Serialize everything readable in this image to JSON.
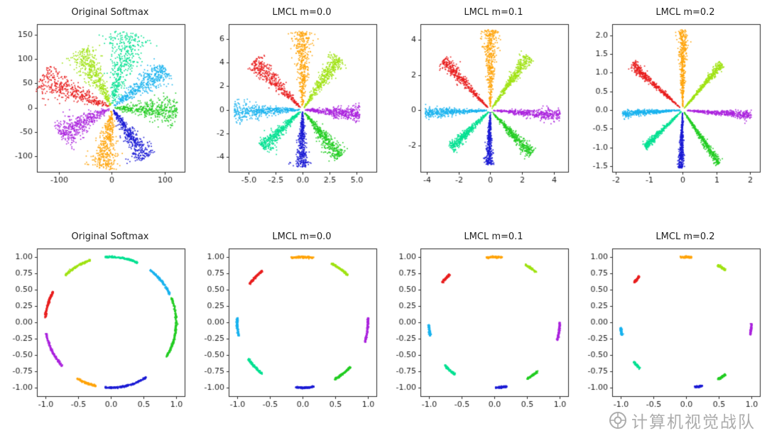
{
  "figure": {
    "background": "#ffffff"
  },
  "watermark": {
    "text": "计算机视觉战队",
    "icon": "camera-lens-logo",
    "color": "#a3a3a3"
  },
  "palette": {
    "red": "#e81e1e",
    "orange": "#ffa308",
    "chartreuse": "#9fe212",
    "green": "#21cc21",
    "teal": "#00e091",
    "cyan": "#18b2ee",
    "blue": "#1a1ad4",
    "purple": "#aa22dd"
  },
  "chart_data": [
    {
      "type": "scatter",
      "mode": "petal",
      "title": "Original Softmax",
      "xlim": [
        -142,
        138
      ],
      "ylim": [
        -132,
        172
      ],
      "xtick_vals": [
        -100,
        0,
        100
      ],
      "xtick_labels": [
        "-100",
        "0",
        "100"
      ],
      "ytick_vals": [
        -100,
        -50,
        0,
        50,
        100,
        150
      ],
      "ytick_labels": [
        "-100",
        "-50",
        "0",
        "50",
        "100",
        "150"
      ],
      "series": [
        {
          "label": "class-green",
          "color": "#21cc21",
          "angle": -4,
          "r": 125,
          "sigma": 7,
          "n": 430
        },
        {
          "label": "class-cyan",
          "color": "#18b2ee",
          "angle": 38,
          "r": 130,
          "sigma": 7,
          "n": 430
        },
        {
          "label": "class-teal",
          "color": "#00e091",
          "angle": 78,
          "r": 158,
          "sigma": 8,
          "n": 430
        },
        {
          "label": "class-chartreuse",
          "color": "#9fe212",
          "angle": 116,
          "r": 135,
          "sigma": 7,
          "n": 430
        },
        {
          "label": "class-red",
          "color": "#e81e1e",
          "angle": 156,
          "r": 148,
          "sigma": 7,
          "n": 430
        },
        {
          "label": "class-purple",
          "color": "#aa22dd",
          "angle": 209,
          "r": 115,
          "sigma": 8,
          "n": 430
        },
        {
          "label": "class-orange",
          "color": "#ffa308",
          "angle": 263,
          "r": 128,
          "sigma": 7,
          "n": 430
        },
        {
          "label": "class-blue",
          "color": "#1a1ad4",
          "angle": 301,
          "r": 122,
          "sigma": 6,
          "n": 430
        }
      ]
    },
    {
      "type": "scatter",
      "mode": "petal",
      "title": "LMCL m=0.0",
      "xlim": [
        -6.8,
        6.8
      ],
      "ylim": [
        -5.3,
        7.3
      ],
      "xtick_vals": [
        -5.0,
        -2.5,
        0.0,
        2.5,
        5.0
      ],
      "xtick_labels": [
        "-5.0",
        "-2.5",
        "0.0",
        "2.5",
        "5.0"
      ],
      "ytick_vals": [
        -4,
        -2,
        0,
        2,
        4,
        6
      ],
      "ytick_labels": [
        "-4",
        "-2",
        "0",
        "2",
        "4",
        "6"
      ],
      "series": [
        {
          "label": "class-orange",
          "color": "#ffa308",
          "angle": 90,
          "r": 6.7,
          "sigma": 5,
          "n": 420
        },
        {
          "label": "class-red",
          "color": "#e81e1e",
          "angle": 137,
          "r": 6.1,
          "sigma": 4.5,
          "n": 420
        },
        {
          "label": "class-chartreuse",
          "color": "#9fe212",
          "angle": 53,
          "r": 5.6,
          "sigma": 4.5,
          "n": 420
        },
        {
          "label": "class-purple",
          "color": "#aa22dd",
          "angle": -4,
          "r": 5.3,
          "sigma": 4,
          "n": 420
        },
        {
          "label": "class-cyan",
          "color": "#18b2ee",
          "angle": 182,
          "r": 6.3,
          "sigma": 4,
          "n": 420
        },
        {
          "label": "class-teal",
          "color": "#00e091",
          "angle": 221,
          "r": 4.9,
          "sigma": 4.5,
          "n": 420
        },
        {
          "label": "class-blue",
          "color": "#1a1ad4",
          "angle": 269,
          "r": 4.9,
          "sigma": 4,
          "n": 420
        },
        {
          "label": "class-green",
          "color": "#21cc21",
          "angle": 310,
          "r": 5.3,
          "sigma": 4.5,
          "n": 420
        }
      ]
    },
    {
      "type": "scatter",
      "mode": "petal",
      "title": "LMCL m=0.1",
      "xlim": [
        -4.4,
        4.9
      ],
      "ylim": [
        -3.5,
        4.9
      ],
      "xtick_vals": [
        -4,
        -2,
        0,
        2,
        4
      ],
      "xtick_labels": [
        "-4",
        "-2",
        "0",
        "2",
        "4"
      ],
      "ytick_vals": [
        -2,
        0,
        2,
        4
      ],
      "ytick_labels": [
        "-2",
        "0",
        "2",
        "4"
      ],
      "series": [
        {
          "label": "class-orange",
          "color": "#ffa308",
          "angle": 90,
          "r": 4.6,
          "sigma": 3.5,
          "n": 420
        },
        {
          "label": "class-red",
          "color": "#e81e1e",
          "angle": 136,
          "r": 4.1,
          "sigma": 3,
          "n": 420
        },
        {
          "label": "class-chartreuse",
          "color": "#9fe212",
          "angle": 52,
          "r": 3.9,
          "sigma": 3,
          "n": 420
        },
        {
          "label": "class-purple",
          "color": "#aa22dd",
          "angle": -4,
          "r": 4.4,
          "sigma": 2.5,
          "n": 420
        },
        {
          "label": "class-cyan",
          "color": "#18b2ee",
          "angle": 182,
          "r": 4.1,
          "sigma": 2.5,
          "n": 420
        },
        {
          "label": "class-teal",
          "color": "#00e091",
          "angle": 221,
          "r": 3.3,
          "sigma": 3,
          "n": 420
        },
        {
          "label": "class-blue",
          "color": "#1a1ad4",
          "angle": 268,
          "r": 3.1,
          "sigma": 2.5,
          "n": 420
        },
        {
          "label": "class-green",
          "color": "#21cc21",
          "angle": 316,
          "r": 3.6,
          "sigma": 3,
          "n": 420
        }
      ]
    },
    {
      "type": "scatter",
      "mode": "petal",
      "title": "LMCL m=0.2",
      "xlim": [
        -2.1,
        2.3
      ],
      "ylim": [
        -1.65,
        2.3
      ],
      "xtick_vals": [
        -2,
        -1,
        0,
        1,
        2
      ],
      "xtick_labels": [
        "-2",
        "-1",
        "0",
        "1",
        "2"
      ],
      "ytick_vals": [
        -1.5,
        -1.0,
        -0.5,
        0.0,
        0.5,
        1.0,
        1.5,
        2.0
      ],
      "ytick_labels": [
        "-1.5",
        "-1.0",
        "-0.5",
        "0.0",
        "0.5",
        "1.0",
        "1.5",
        "2.0"
      ],
      "series": [
        {
          "label": "class-orange",
          "color": "#ffa308",
          "angle": 90,
          "r": 2.15,
          "sigma": 2.5,
          "n": 420
        },
        {
          "label": "class-red",
          "color": "#e81e1e",
          "angle": 141,
          "r": 1.95,
          "sigma": 2,
          "n": 420
        },
        {
          "label": "class-chartreuse",
          "color": "#9fe212",
          "angle": 47,
          "r": 1.7,
          "sigma": 2,
          "n": 420
        },
        {
          "label": "class-purple",
          "color": "#aa22dd",
          "angle": -4,
          "r": 2.05,
          "sigma": 1.8,
          "n": 420
        },
        {
          "label": "class-cyan",
          "color": "#18b2ee",
          "angle": 183,
          "r": 1.8,
          "sigma": 1.8,
          "n": 420
        },
        {
          "label": "class-teal",
          "color": "#00e091",
          "angle": 221,
          "r": 1.5,
          "sigma": 2,
          "n": 420
        },
        {
          "label": "class-blue",
          "color": "#1a1ad4",
          "angle": 268,
          "r": 1.55,
          "sigma": 1.8,
          "n": 420
        },
        {
          "label": "class-green",
          "color": "#21cc21",
          "angle": 307,
          "r": 1.8,
          "sigma": 2,
          "n": 420
        }
      ]
    },
    {
      "type": "scatter",
      "mode": "ring",
      "title": "Original Softmax",
      "xlim": [
        -1.13,
        1.13
      ],
      "ylim": [
        -1.13,
        1.13
      ],
      "xtick_vals": [
        -1.0,
        -0.5,
        0.0,
        0.5,
        1.0
      ],
      "xtick_labels": [
        "-1.0",
        "-0.5",
        "0.0",
        "0.5",
        "1.0"
      ],
      "ytick_vals": [
        -1.0,
        -0.75,
        -0.5,
        -0.25,
        0.0,
        0.25,
        0.5,
        0.75,
        1.0
      ],
      "ytick_labels": [
        "-1.00",
        "-0.75",
        "-0.50",
        "-0.25",
        "0.00",
        "0.25",
        "0.50",
        "0.75",
        "1.00"
      ],
      "series": [
        {
          "label": "class-green",
          "color": "#21cc21",
          "angle": -5,
          "halfwidth": 27,
          "n": 300
        },
        {
          "label": "class-cyan",
          "color": "#18b2ee",
          "angle": 39,
          "halfwidth": 14,
          "n": 200
        },
        {
          "label": "class-teal",
          "color": "#00e091",
          "angle": 80,
          "halfwidth": 15,
          "n": 200
        },
        {
          "label": "class-chartreuse",
          "color": "#9fe212",
          "angle": 121,
          "halfwidth": 13,
          "n": 200
        },
        {
          "label": "class-red",
          "color": "#e81e1e",
          "angle": 164,
          "halfwidth": 12,
          "n": 200
        },
        {
          "label": "class-purple",
          "color": "#aa22dd",
          "angle": 206,
          "halfwidth": 16,
          "n": 220
        },
        {
          "label": "class-orange",
          "color": "#ffa308",
          "angle": 248,
          "halfwidth": 9,
          "n": 150
        },
        {
          "label": "class-blue",
          "color": "#1a1ad4",
          "angle": 284,
          "halfwidth": 19,
          "n": 240
        }
      ]
    },
    {
      "type": "scatter",
      "mode": "ring",
      "title": "LMCL m=0.0",
      "xlim": [
        -1.13,
        1.13
      ],
      "ylim": [
        -1.13,
        1.13
      ],
      "xtick_vals": [
        -1.0,
        -0.5,
        0.0,
        0.5,
        1.0
      ],
      "xtick_labels": [
        "-1.0",
        "-0.5",
        "0.0",
        "0.5",
        "1.0"
      ],
      "ytick_vals": [
        -1.0,
        -0.75,
        -0.5,
        -0.25,
        0.0,
        0.25,
        0.5,
        0.75,
        1.0
      ],
      "ytick_labels": [
        "-1.00",
        "-0.75",
        "-0.50",
        "-0.25",
        "0.00",
        "0.25",
        "0.50",
        "0.75",
        "1.00"
      ],
      "series": [
        {
          "label": "class-orange",
          "color": "#ffa308",
          "angle": 90,
          "halfwidth": 10,
          "n": 170
        },
        {
          "label": "class-chartreuse",
          "color": "#9fe212",
          "angle": 55,
          "halfwidth": 9,
          "n": 170
        },
        {
          "label": "class-purple",
          "color": "#aa22dd",
          "angle": -7,
          "halfwidth": 11,
          "n": 170
        },
        {
          "label": "class-green",
          "color": "#21cc21",
          "angle": -52,
          "halfwidth": 9,
          "n": 170
        },
        {
          "label": "class-blue",
          "color": "#1a1ad4",
          "angle": -88,
          "halfwidth": 8,
          "n": 170
        },
        {
          "label": "class-teal",
          "color": "#00e091",
          "angle": -137,
          "halfwidth": 9,
          "n": 170
        },
        {
          "label": "class-cyan",
          "color": "#18b2ee",
          "angle": 184,
          "halfwidth": 8,
          "n": 170
        },
        {
          "label": "class-red",
          "color": "#e81e1e",
          "angle": 136,
          "halfwidth": 8,
          "n": 170
        }
      ]
    },
    {
      "type": "scatter",
      "mode": "ring",
      "title": "LMCL m=0.1",
      "xlim": [
        -1.13,
        1.13
      ],
      "ylim": [
        -1.13,
        1.13
      ],
      "xtick_vals": [
        -1.0,
        -0.5,
        0.0,
        0.5,
        1.0
      ],
      "xtick_labels": [
        "-1.0",
        "-0.5",
        "0.0",
        "0.5",
        "1.0"
      ],
      "ytick_vals": [
        -1.0,
        -0.75,
        -0.5,
        -0.25,
        0.0,
        0.25,
        0.5,
        0.75,
        1.0
      ],
      "ytick_labels": [
        "-1.00",
        "-0.75",
        "-0.50",
        "-0.25",
        "0.00",
        "0.25",
        "0.50",
        "0.75",
        "1.00"
      ],
      "series": [
        {
          "label": "class-orange",
          "color": "#ffa308",
          "angle": 90,
          "halfwidth": 7,
          "n": 130
        },
        {
          "label": "class-chartreuse",
          "color": "#9fe212",
          "angle": 56,
          "halfwidth": 6,
          "n": 130
        },
        {
          "label": "class-purple",
          "color": "#aa22dd",
          "angle": -8,
          "halfwidth": 8,
          "n": 130
        },
        {
          "label": "class-green",
          "color": "#21cc21",
          "angle": -54,
          "halfwidth": 6,
          "n": 130
        },
        {
          "label": "class-blue",
          "color": "#1a1ad4",
          "angle": -84,
          "halfwidth": 5,
          "n": 130
        },
        {
          "label": "class-teal",
          "color": "#00e091",
          "angle": -133,
          "halfwidth": 6,
          "n": 130
        },
        {
          "label": "class-cyan",
          "color": "#18b2ee",
          "angle": 187,
          "halfwidth": 5,
          "n": 130
        },
        {
          "label": "class-red",
          "color": "#e81e1e",
          "angle": 138,
          "halfwidth": 5,
          "n": 130
        }
      ]
    },
    {
      "type": "scatter",
      "mode": "ring",
      "title": "LMCL m=0.2",
      "xlim": [
        -1.13,
        1.13
      ],
      "ylim": [
        -1.13,
        1.13
      ],
      "xtick_vals": [
        -1.0,
        -0.5,
        0.0,
        0.5,
        1.0
      ],
      "xtick_labels": [
        "-1.0",
        "-0.5",
        "0.0",
        "0.5",
        "1.0"
      ],
      "ytick_vals": [
        -1.0,
        -0.75,
        -0.5,
        -0.25,
        0.0,
        0.25,
        0.5,
        0.75,
        1.0
      ],
      "ytick_labels": [
        "-1.00",
        "-0.75",
        "-0.50",
        "-0.25",
        "0.00",
        "0.25",
        "0.50",
        "0.75",
        "1.00"
      ],
      "series": [
        {
          "label": "class-orange",
          "color": "#ffa308",
          "angle": 90,
          "halfwidth": 5,
          "n": 110
        },
        {
          "label": "class-chartreuse",
          "color": "#9fe212",
          "angle": 57,
          "halfwidth": 4,
          "n": 110
        },
        {
          "label": "class-purple",
          "color": "#aa22dd",
          "angle": -6,
          "halfwidth": 5,
          "n": 110
        },
        {
          "label": "class-green",
          "color": "#21cc21",
          "angle": -57,
          "halfwidth": 4,
          "n": 110
        },
        {
          "label": "class-blue",
          "color": "#1a1ad4",
          "angle": -79,
          "halfwidth": 3.5,
          "n": 110
        },
        {
          "label": "class-teal",
          "color": "#00e091",
          "angle": -139,
          "halfwidth": 4,
          "n": 110
        },
        {
          "label": "class-cyan",
          "color": "#18b2ee",
          "angle": 188,
          "halfwidth": 3.5,
          "n": 110
        },
        {
          "label": "class-red",
          "color": "#e81e1e",
          "angle": 139,
          "halfwidth": 3.5,
          "n": 110
        }
      ]
    }
  ]
}
